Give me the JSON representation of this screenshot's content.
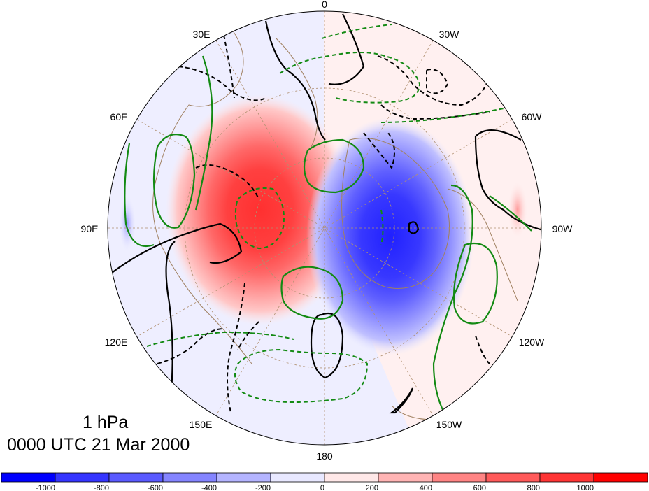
{
  "map": {
    "projection": "north polar stereographic",
    "longitude_labels": [
      "0",
      "30W",
      "60W",
      "90W",
      "120W",
      "150W",
      "180",
      "150E",
      "120E",
      "90E",
      "60E",
      "30E"
    ],
    "anomaly_centers": [
      {
        "sign": "positive",
        "color": "#ff3030",
        "level": 1000
      },
      {
        "sign": "negative",
        "color": "#2020ff",
        "level": -1000
      }
    ],
    "contour_colors": {
      "black": "#000000",
      "green": "#138a13",
      "coastline": "#a08060",
      "grid": "#b09070"
    }
  },
  "title": {
    "level": "1 hPa",
    "time": "0000 UTC 21 Mar 2000"
  },
  "colorbar": {
    "labels": [
      "-1000",
      "-800",
      "-600",
      "-400",
      "-200",
      "0",
      "200",
      "400",
      "600",
      "800",
      "1000"
    ],
    "colors": [
      "#0000ff",
      "#3535ff",
      "#5a5aff",
      "#8484ff",
      "#b4b4ff",
      "#e8e8ff",
      "#ffe8e8",
      "#ffb4b4",
      "#ff8484",
      "#ff5a5a",
      "#ff3535",
      "#ff0000"
    ]
  }
}
